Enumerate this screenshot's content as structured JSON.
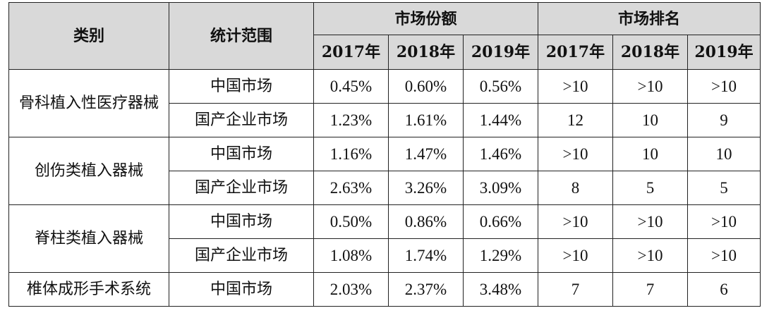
{
  "header": {
    "category": "类别",
    "scope": "统计范围",
    "market_share": "市场份额",
    "market_rank": "市场排名",
    "years": [
      "2017年",
      "2018年",
      "2019年"
    ]
  },
  "groups": [
    {
      "category": "骨科植入性医疗器械",
      "rows": [
        {
          "scope": "中国市场",
          "share": [
            "0.45%",
            "0.60%",
            "0.56%"
          ],
          "rank": [
            ">10",
            ">10",
            ">10"
          ]
        },
        {
          "scope": "国产企业市场",
          "share": [
            "1.23%",
            "1.61%",
            "1.44%"
          ],
          "rank": [
            "12",
            "10",
            "9"
          ]
        }
      ]
    },
    {
      "category": "创伤类植入器械",
      "rows": [
        {
          "scope": "中国市场",
          "share": [
            "1.16%",
            "1.47%",
            "1.46%"
          ],
          "rank": [
            ">10",
            "10",
            "10"
          ]
        },
        {
          "scope": "国产企业市场",
          "share": [
            "2.63%",
            "3.26%",
            "3.09%"
          ],
          "rank": [
            "8",
            "5",
            "5"
          ]
        }
      ]
    },
    {
      "category": "脊柱类植入器械",
      "rows": [
        {
          "scope": "中国市场",
          "share": [
            "0.50%",
            "0.86%",
            "0.66%"
          ],
          "rank": [
            ">10",
            ">10",
            ">10"
          ]
        },
        {
          "scope": "国产企业市场",
          "share": [
            "1.08%",
            "1.74%",
            "1.29%"
          ],
          "rank": [
            ">10",
            ">10",
            ">10"
          ]
        }
      ]
    },
    {
      "category": "椎体成形手术系统",
      "rows": [
        {
          "scope": "中国市场",
          "share": [
            "2.03%",
            "2.37%",
            "3.48%"
          ],
          "rank": [
            "7",
            "7",
            "6"
          ]
        }
      ]
    }
  ],
  "colors": {
    "header_bg": "#d9d9d9",
    "border": "#222222",
    "text": "#111111"
  }
}
